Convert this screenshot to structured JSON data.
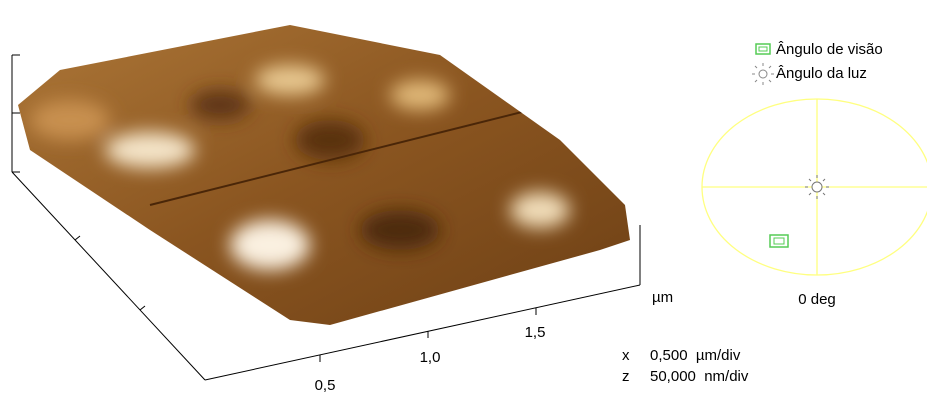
{
  "legend": [
    "Ângulo de visão",
    "Ângulo da luz"
  ],
  "axis": {
    "ticks": [
      "0,5",
      "1,0",
      "1,5"
    ],
    "unit": "µm"
  },
  "scale": [
    {
      "axis": "x",
      "text": "0,500  µm/div"
    },
    {
      "axis": "z",
      "text": "50,000  nm/div"
    }
  ],
  "angle": "0 deg"
}
